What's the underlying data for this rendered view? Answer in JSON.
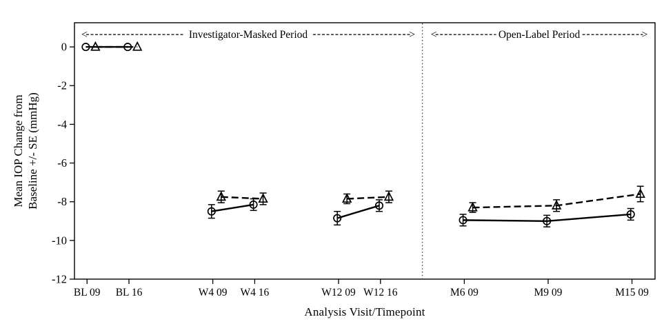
{
  "figure": {
    "background": "#ffffff",
    "ink_color": "#000000",
    "divider_color": "#4a4a4a"
  },
  "chart_data": {
    "type": "line",
    "title": "",
    "xlabel": "Analysis Visit/Timepoint",
    "ylabel": "Mean IOP Change from Baseline +/- SE (mmHg)",
    "ylabel_lines": [
      "Mean IOP Change from",
      "Baseline +/- SE (mmHg)"
    ],
    "categories": [
      "BL 09",
      "BL 16",
      "W4 09",
      "W4 16",
      "W12 09",
      "W12 16",
      "M6 09",
      "M9 09",
      "M15 09"
    ],
    "category_units": [
      0,
      2,
      6,
      8,
      12,
      14,
      18,
      22,
      26
    ],
    "x_range": [
      -0.6,
      27.1
    ],
    "y_range": [
      -12,
      1.25
    ],
    "y_ticks": [
      0,
      -2,
      -4,
      -6,
      -8,
      -10,
      -12
    ],
    "y_tick_labels": [
      "0",
      "-2",
      "-4",
      "-6",
      "-8",
      "-10",
      "-12"
    ],
    "grid": false,
    "legend": "none",
    "segments": [
      [
        0,
        1
      ],
      [
        2,
        3
      ],
      [
        4,
        5
      ],
      [
        6,
        7,
        8
      ]
    ],
    "series": [
      {
        "name": "circle-solid",
        "marker": "circle",
        "line_style": "solid",
        "x_offset_units": -0.06,
        "color": "#000000",
        "values": [
          0,
          0,
          -8.5,
          -8.15,
          -8.85,
          -8.2,
          -8.95,
          -9.0,
          -8.65
        ],
        "se": [
          0,
          0,
          0.35,
          0.3,
          0.35,
          0.3,
          0.3,
          0.3,
          0.3
        ]
      },
      {
        "name": "triangle-dashed",
        "marker": "triangle",
        "line_style": "dashed",
        "x_offset_units": 0.4,
        "color": "#000000",
        "values": [
          0,
          0,
          -7.75,
          -7.85,
          -7.85,
          -7.75,
          -8.3,
          -8.2,
          -7.6
        ],
        "se": [
          0,
          0,
          0.3,
          0.3,
          0.25,
          0.3,
          0.25,
          0.3,
          0.4
        ]
      }
    ],
    "period_divider_unit": 16,
    "annotations": [
      {
        "label": "Investigator-Masked Period",
        "left_arrow": "<",
        "right_arrow": ">",
        "x_start_unit": -0.37,
        "x_end_unit": 15.75,
        "y_value": 0.64
      },
      {
        "label": "Open-Label Period",
        "left_arrow": "<",
        "right_arrow": ">",
        "x_start_unit": 16.3,
        "x_end_unit": 26.85,
        "y_value": 0.64
      }
    ]
  }
}
